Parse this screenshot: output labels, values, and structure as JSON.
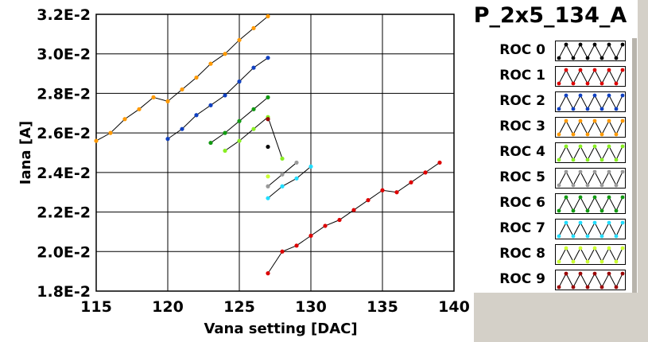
{
  "chart_data": {
    "type": "line",
    "title": "P_2x5_134_A",
    "xlabel": "Vana setting [DAC]",
    "ylabel": "Iana [A]",
    "xlim": [
      115,
      140
    ],
    "ylim": [
      0.018,
      0.032
    ],
    "x_ticks": [
      115,
      120,
      125,
      130,
      135,
      140
    ],
    "x_tick_labels": [
      "115",
      "120",
      "125",
      "130",
      "135",
      "140"
    ],
    "y_ticks": [
      0.018,
      0.02,
      0.022,
      0.024,
      0.026,
      0.028,
      0.03,
      0.032
    ],
    "y_tick_labels": [
      "1.8E-2",
      "2.0E-2",
      "2.2E-2",
      "2.4E-2",
      "2.6E-2",
      "2.8E-2",
      "3.0E-2",
      "3.2E-2"
    ],
    "grid": true,
    "legend_position": "right",
    "series": [
      {
        "name": "ROC 0",
        "color": "#000000",
        "x": [
          127
        ],
        "y": [
          0.0253
        ]
      },
      {
        "name": "ROC 1",
        "color": "#dd0000",
        "x": [
          127,
          128,
          129,
          130,
          131,
          132,
          133,
          134,
          135,
          136,
          137,
          138,
          139
        ],
        "y": [
          0.0189,
          0.02,
          0.0203,
          0.0208,
          0.0213,
          0.0216,
          0.0221,
          0.0226,
          0.0231,
          0.023,
          0.0235,
          0.024,
          0.0245
        ]
      },
      {
        "name": "ROC 2",
        "color": "#1040c0",
        "x": [
          120,
          121,
          122,
          123,
          124,
          125,
          126,
          127
        ],
        "y": [
          0.0257,
          0.0262,
          0.0269,
          0.0274,
          0.0279,
          0.0286,
          0.0293,
          0.0298
        ]
      },
      {
        "name": "ROC 3",
        "color": "#ff9900",
        "x": [
          115,
          116,
          117,
          118,
          119,
          120,
          121,
          122,
          123,
          124,
          125,
          126,
          127
        ],
        "y": [
          0.0256,
          0.026,
          0.0267,
          0.0272,
          0.0278,
          0.0276,
          0.0282,
          0.0288,
          0.0295,
          0.03,
          0.0307,
          0.0313,
          0.0319
        ]
      },
      {
        "name": "ROC 4",
        "color": "#88ee22",
        "x": [
          124,
          125,
          126,
          127,
          128
        ],
        "y": [
          0.0251,
          0.0256,
          0.0262,
          0.0268,
          0.0247
        ]
      },
      {
        "name": "ROC 5",
        "color": "#999999",
        "x": [
          127,
          128,
          129
        ],
        "y": [
          0.0233,
          0.0239,
          0.0245
        ]
      },
      {
        "name": "ROC 6",
        "color": "#119911",
        "x": [
          123,
          124,
          125,
          126,
          127
        ],
        "y": [
          0.0255,
          0.026,
          0.0266,
          0.0272,
          0.0278
        ]
      },
      {
        "name": "ROC 7",
        "color": "#22ddff",
        "x": [
          127,
          128,
          129,
          130
        ],
        "y": [
          0.0227,
          0.0233,
          0.0237,
          0.0243
        ]
      },
      {
        "name": "ROC 8",
        "color": "#ccff33",
        "x": [
          127
        ],
        "y": [
          0.0238
        ]
      },
      {
        "name": "ROC 9",
        "color": "#990000",
        "x": [
          127
        ],
        "y": [
          0.0267
        ]
      }
    ]
  }
}
